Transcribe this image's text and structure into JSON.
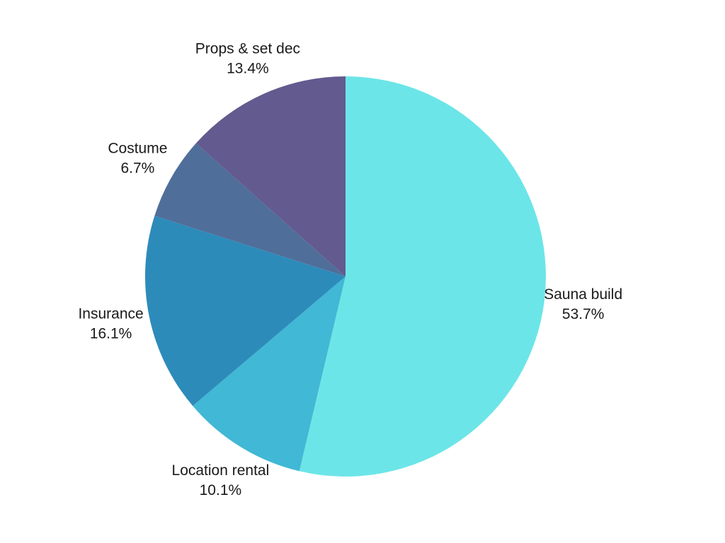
{
  "chart_data": {
    "type": "pie",
    "title": "",
    "start_angle_deg": 0,
    "direction": "clockwise",
    "slices": [
      {
        "label": "Sauna build",
        "value": 53.7,
        "value_label": "53.7%",
        "color": "#6ce5e8"
      },
      {
        "label": "Location rental",
        "value": 10.1,
        "value_label": "10.1%",
        "color": "#41b8d5"
      },
      {
        "label": "Insurance",
        "value": 16.1,
        "value_label": "16.1%",
        "color": "#2d8bba"
      },
      {
        "label": "Costume",
        "value": 6.7,
        "value_label": "6.7%",
        "color": "#506e9a"
      },
      {
        "label": "Props & set dec",
        "value": 13.4,
        "value_label": "13.4%",
        "color": "#635a8f"
      }
    ]
  }
}
